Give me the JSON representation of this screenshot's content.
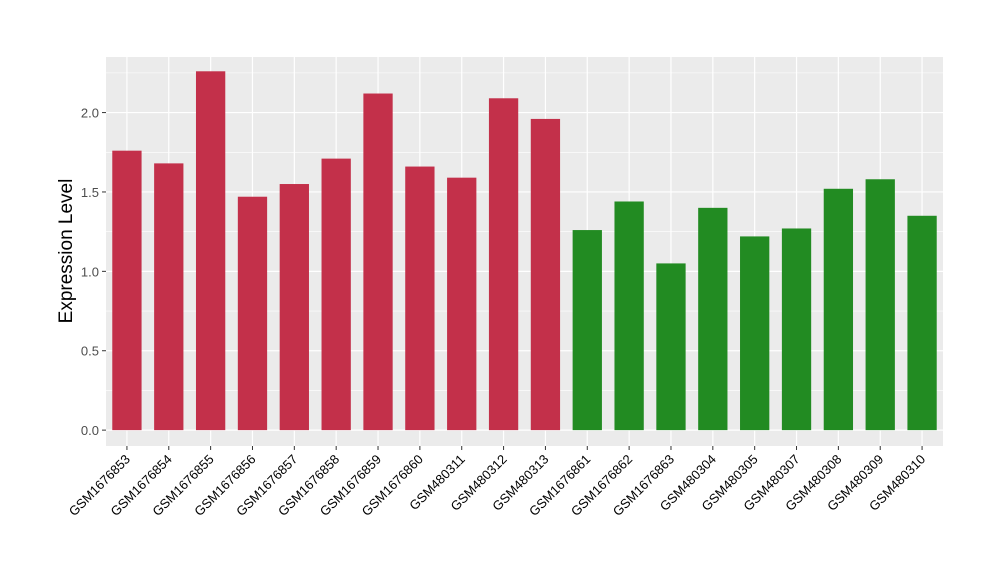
{
  "chart_data": {
    "type": "bar",
    "xlabel": "",
    "ylabel": "Expression Level",
    "ylim": [
      -0.1,
      2.35
    ],
    "yticks": [
      0.0,
      0.5,
      1.0,
      1.5,
      2.0
    ],
    "ytick_labels": [
      "0.0",
      "0.5",
      "1.0",
      "1.5",
      "2.0"
    ],
    "grid": true,
    "legend": "none",
    "colors": {
      "panel": "#EBEBEB",
      "grid": "#FFFFFF",
      "group_a": "#C3304A",
      "group_b": "#228B22",
      "text": "#000000",
      "tick_text": "#4D4D4D"
    },
    "categories": [
      "GSM1676853",
      "GSM1676854",
      "GSM1676855",
      "GSM1676856",
      "GSM1676857",
      "GSM1676858",
      "GSM1676859",
      "GSM1676860",
      "GSM480311",
      "GSM480312",
      "GSM480313",
      "GSM1676861",
      "GSM1676862",
      "GSM1676863",
      "GSM480304",
      "GSM480305",
      "GSM480307",
      "GSM480308",
      "GSM480309",
      "GSM480310"
    ],
    "values": [
      1.76,
      1.68,
      2.26,
      1.47,
      1.55,
      1.71,
      2.12,
      1.66,
      1.59,
      2.09,
      1.96,
      1.26,
      1.44,
      1.05,
      1.4,
      1.22,
      1.27,
      1.52,
      1.58,
      1.35
    ],
    "bar_colors": [
      "#C3304A",
      "#C3304A",
      "#C3304A",
      "#C3304A",
      "#C3304A",
      "#C3304A",
      "#C3304A",
      "#C3304A",
      "#C3304A",
      "#C3304A",
      "#C3304A",
      "#228B22",
      "#228B22",
      "#228B22",
      "#228B22",
      "#228B22",
      "#228B22",
      "#228B22",
      "#228B22",
      "#228B22"
    ]
  }
}
